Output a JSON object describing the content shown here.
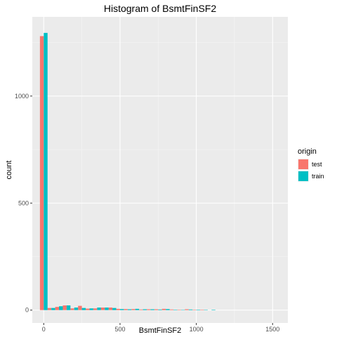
{
  "chart_data": {
    "type": "bar",
    "title": "Histogram of BsmtFinSF2",
    "xlabel": "BsmtFinSF2",
    "ylabel": "count",
    "xlim": [
      -75,
      1600
    ],
    "ylim": [
      -60,
      1370
    ],
    "x_ticks": [
      0,
      500,
      1000,
      1500
    ],
    "y_ticks": [
      0,
      500,
      1000
    ],
    "x_tick_labels": [
      "0",
      "500",
      "1000",
      "1500"
    ],
    "y_tick_labels": [
      "0",
      "500",
      "1000"
    ],
    "bin_width": 50,
    "legend": {
      "title": "origin",
      "position": "right"
    },
    "series": [
      {
        "name": "test",
        "color": "#F8766D",
        "bins": [
          0,
          50,
          100,
          150,
          200,
          250,
          300,
          350,
          400,
          450,
          500,
          550,
          600,
          650,
          700,
          750,
          800,
          850,
          900,
          950,
          1000,
          1050,
          1100
        ],
        "values": [
          1280,
          10,
          15,
          22,
          8,
          20,
          7,
          8,
          12,
          12,
          6,
          5,
          5,
          3,
          4,
          4,
          6,
          3,
          2,
          4,
          2,
          2,
          0
        ]
      },
      {
        "name": "train",
        "color": "#00BFC4",
        "bins": [
          0,
          50,
          100,
          150,
          200,
          250,
          300,
          350,
          400,
          450,
          500,
          550,
          600,
          650,
          700,
          750,
          800,
          850,
          900,
          950,
          1000,
          1050,
          1100
        ],
        "values": [
          1295,
          10,
          18,
          22,
          12,
          10,
          8,
          12,
          12,
          10,
          5,
          4,
          6,
          4,
          4,
          3,
          5,
          2,
          1,
          3,
          2,
          1,
          2
        ]
      }
    ],
    "grid": true
  }
}
